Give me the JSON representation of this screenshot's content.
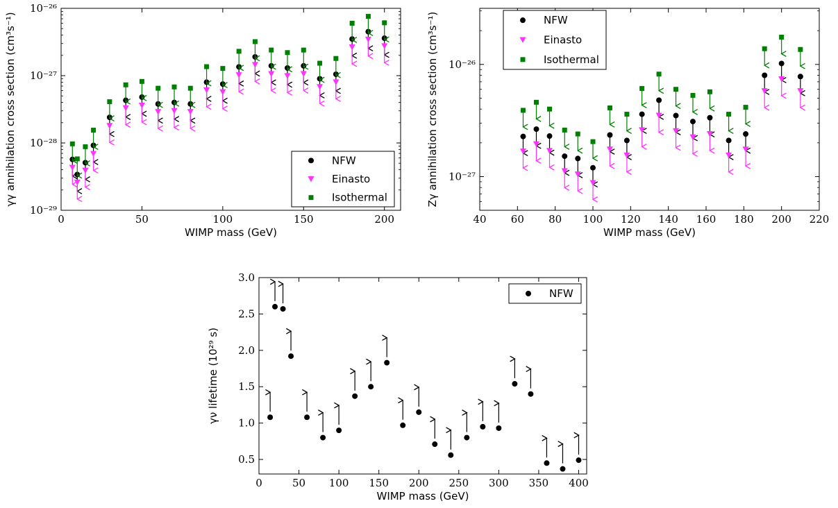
{
  "chart_data": [
    {
      "id": "gg",
      "type": "scatter",
      "xlabel": "WIMP mass (GeV)",
      "ylabel": "γγ annihilation cross section (cm³s⁻¹)",
      "yscale": "log",
      "xlim": [
        0,
        210
      ],
      "ylim_exp": [
        -29,
        -26
      ],
      "xticks": [
        "0",
        "50",
        "100",
        "150",
        "200"
      ],
      "xtick_values": [
        0,
        50,
        100,
        150,
        200
      ],
      "yticks": [
        "10⁻²⁹",
        "10⁻²⁸",
        "10⁻²⁷",
        "10⁻²⁶"
      ],
      "ytick_exps": [
        -29,
        -28,
        -27,
        -26
      ],
      "legend_position": "lower-right",
      "upper_limits": true,
      "x": [
        7,
        10,
        15,
        20,
        30,
        40,
        50,
        60,
        70,
        80,
        90,
        100,
        110,
        120,
        130,
        140,
        150,
        160,
        170,
        180,
        190,
        200
      ],
      "series": [
        {
          "name": "NFW",
          "marker": "circle",
          "color": "#000000",
          "values": [
            5.7e-29,
            3.4e-29,
            5.1e-29,
            9.2e-29,
            2.4e-28,
            4.3e-28,
            4.8e-28,
            3.8e-28,
            4e-28,
            3.8e-28,
            8e-28,
            7.5e-28,
            1.35e-27,
            1.9e-27,
            1.4e-27,
            1.3e-27,
            1.4e-27,
            9e-28,
            1.05e-27,
            3.5e-27,
            4.5e-27,
            3.6e-27
          ]
        },
        {
          "name": "Einasto",
          "marker": "triangle-down",
          "color": "#ff33ff",
          "values": [
            4.3e-29,
            2.6e-29,
            3.9e-29,
            6.9e-29,
            1.8e-28,
            3.3e-28,
            3.6e-28,
            2.9e-28,
            3e-28,
            2.9e-28,
            6.1e-28,
            5.7e-28,
            1.02e-27,
            1.45e-27,
            1.06e-27,
            9.9e-28,
            1.06e-27,
            6.8e-28,
            8e-28,
            2.65e-27,
            3.45e-27,
            2.75e-27
          ]
        },
        {
          "name": "Isothermal",
          "marker": "square",
          "color": "#008000",
          "values": [
            9.7e-29,
            5.8e-29,
            8.8e-29,
            1.55e-28,
            4.1e-28,
            7.3e-28,
            8.2e-28,
            6.5e-28,
            6.8e-28,
            6.5e-28,
            1.36e-27,
            1.28e-27,
            2.3e-27,
            3.2e-27,
            2.4e-27,
            2.2e-27,
            2.4e-27,
            1.53e-27,
            1.8e-27,
            6e-27,
            7.6e-27,
            6.1e-27
          ]
        }
      ]
    },
    {
      "id": "zg",
      "type": "scatter",
      "xlabel": "WIMP mass (GeV)",
      "ylabel": "Zγ annihilation cross section (cm³s⁻¹)",
      "yscale": "log",
      "xlim": [
        40,
        220
      ],
      "ylim_exp": [
        -27.3,
        -25.5
      ],
      "xticks": [
        "40",
        "60",
        "80",
        "100",
        "120",
        "140",
        "160",
        "180",
        "200",
        "220"
      ],
      "xtick_values": [
        40,
        60,
        80,
        100,
        120,
        140,
        160,
        180,
        200,
        220
      ],
      "yticks": [
        "10⁻²⁷",
        "10⁻²⁶"
      ],
      "ytick_exps": [
        -27,
        -26
      ],
      "legend_position": "top-left",
      "upper_limits": true,
      "x": [
        63,
        70,
        77,
        85,
        92,
        100,
        109,
        118,
        126,
        135,
        144,
        153,
        162,
        172,
        181,
        191,
        200,
        210
      ],
      "series": [
        {
          "name": "NFW",
          "marker": "circle",
          "color": "#000000",
          "values": [
            2.28e-27,
            2.65e-27,
            2.3e-27,
            1.52e-27,
            1.45e-27,
            1.2e-27,
            2.35e-27,
            2.1e-27,
            3.6e-27,
            4.8e-27,
            3.5e-27,
            3.1e-27,
            3.35e-27,
            2.1e-27,
            2.4e-27,
            8e-27,
            1.02e-26,
            7.8e-27
          ]
        },
        {
          "name": "Einasto",
          "marker": "triangle-down",
          "color": "#ff33ff",
          "values": [
            1.68e-27,
            1.95e-27,
            1.7e-27,
            1.12e-27,
            1.05e-27,
            8.8e-28,
            1.75e-27,
            1.55e-27,
            2.6e-27,
            3.5e-27,
            2.55e-27,
            2.25e-27,
            2.4e-27,
            1.55e-27,
            1.75e-27,
            5.8e-27,
            7.4e-27,
            5.8e-27
          ]
        },
        {
          "name": "Isothermal",
          "marker": "square",
          "color": "#008000",
          "values": [
            3.9e-27,
            4.6e-27,
            4e-27,
            2.6e-27,
            2.4e-27,
            2.05e-27,
            4.1e-27,
            3.6e-27,
            6.1e-27,
            8.2e-27,
            6e-27,
            5.3e-27,
            5.7e-27,
            3.6e-27,
            4.15e-27,
            1.38e-26,
            1.75e-26,
            1.36e-26
          ]
        }
      ]
    },
    {
      "id": "gnu",
      "type": "scatter",
      "xlabel": "WIMP mass (GeV)",
      "ylabel": "γν lifetime (10²⁹ s)",
      "yscale": "linear",
      "xlim": [
        0,
        410
      ],
      "ylim": [
        0.3,
        3.0
      ],
      "xticks": [
        "0",
        "50",
        "100",
        "150",
        "200",
        "250",
        "300",
        "350",
        "400"
      ],
      "xtick_values": [
        0,
        50,
        100,
        150,
        200,
        250,
        300,
        350,
        400
      ],
      "yticks": [
        "0.5",
        "1.0",
        "1.5",
        "2.0",
        "2.5",
        "3.0"
      ],
      "ytick_values": [
        0.5,
        1.0,
        1.5,
        2.0,
        2.5,
        3.0
      ],
      "legend_position": "top-right",
      "lower_limits": true,
      "x": [
        14,
        20,
        30,
        40,
        60,
        80,
        100,
        120,
        140,
        160,
        180,
        200,
        220,
        240,
        260,
        280,
        300,
        320,
        340,
        360,
        380,
        400
      ],
      "series": [
        {
          "name": "NFW",
          "marker": "circle",
          "color": "#000000",
          "values": [
            1.08,
            2.6,
            2.57,
            1.92,
            1.08,
            0.8,
            0.9,
            1.37,
            1.5,
            1.83,
            0.97,
            1.15,
            0.71,
            0.56,
            0.8,
            0.95,
            0.93,
            1.54,
            1.4,
            0.45,
            0.37,
            0.49
          ]
        }
      ]
    }
  ]
}
